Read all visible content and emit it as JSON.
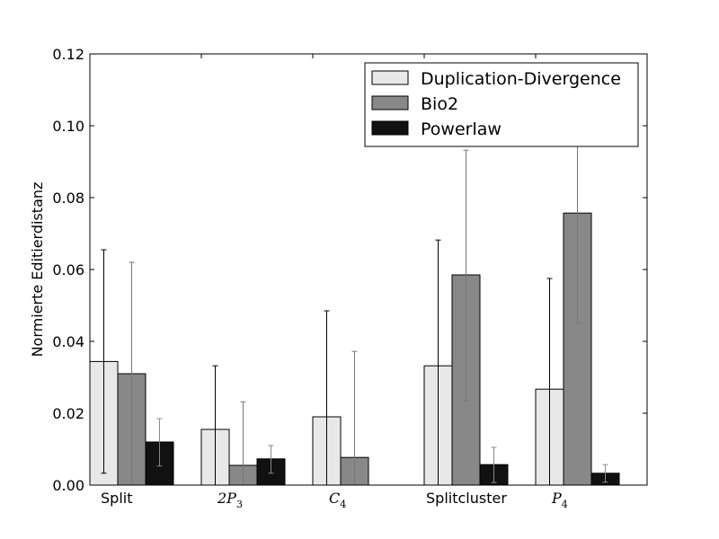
{
  "chart_data": {
    "type": "bar",
    "title": "",
    "xlabel": "",
    "ylabel": "Normierte Editierdistanz",
    "ylim": [
      0,
      0.12
    ],
    "yticks": [
      "0.00",
      "0.02",
      "0.04",
      "0.06",
      "0.08",
      "0.10",
      "0.12"
    ],
    "grid": false,
    "legend_position": "top-right",
    "categories": [
      {
        "text": "Split",
        "math": false,
        "base": "Split",
        "sub": ""
      },
      {
        "text": "2P3",
        "math": true,
        "base": "2P",
        "sub": "3"
      },
      {
        "text": "C4",
        "math": true,
        "base": "C",
        "sub": "4"
      },
      {
        "text": "Splitcluster",
        "math": false,
        "base": "Splitcluster",
        "sub": ""
      },
      {
        "text": "P4",
        "math": true,
        "base": "P",
        "sub": "4"
      }
    ],
    "series": [
      {
        "name": "Duplication-Divergence",
        "color": "#e8e8e8",
        "errcolor": "#000000",
        "values": [
          0.0344,
          0.0155,
          0.019,
          0.0332,
          0.0267
        ],
        "err_low": [
          0.0033,
          0.0,
          0.0,
          0.0,
          0.0
        ],
        "err_high": [
          0.0655,
          0.0332,
          0.0485,
          0.0682,
          0.0575
        ]
      },
      {
        "name": "Bio2",
        "color": "#888888",
        "errcolor": "#777777",
        "values": [
          0.031,
          0.0055,
          0.0077,
          0.0585,
          0.0757
        ],
        "err_low": [
          0.0,
          0.0,
          0.0,
          0.0235,
          0.045
        ],
        "err_high": [
          0.062,
          0.0232,
          0.0372,
          0.0932,
          0.107
        ]
      },
      {
        "name": "Powerlaw",
        "color": "#111111",
        "errcolor": "#888888",
        "values": [
          0.012,
          0.0073,
          0.0,
          0.0057,
          0.0033
        ],
        "err_low": [
          0.0053,
          0.0033,
          0.0,
          0.0007,
          0.0008
        ],
        "err_high": [
          0.0185,
          0.011,
          0.0,
          0.0105,
          0.0057
        ]
      }
    ]
  }
}
